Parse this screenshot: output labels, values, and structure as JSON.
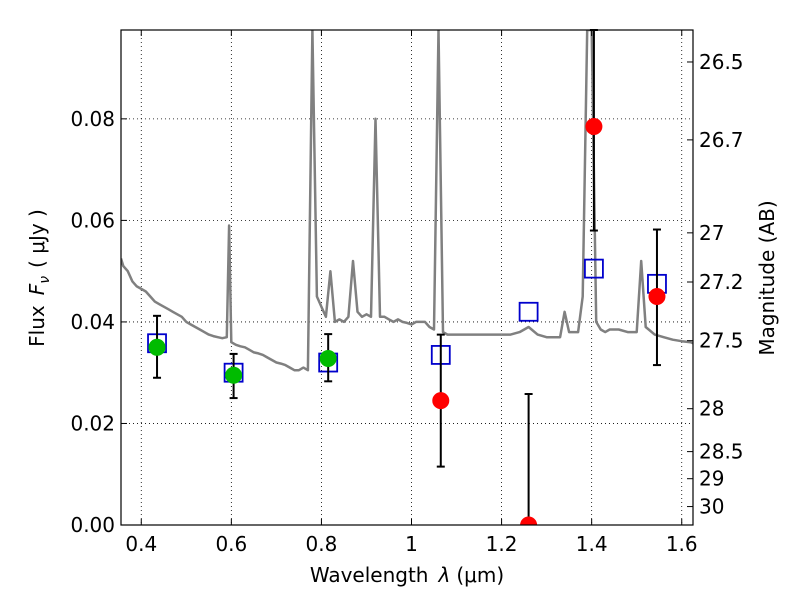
{
  "chart_data": {
    "type": "scatter",
    "xlabel_prefix": "Wavelength",
    "xlabel_symbol": "λ",
    "xlabel_unit": "(μm)",
    "ylabel_prefix": "Flux",
    "ylabel_symbol": "F",
    "ylabel_sub": "ν",
    "ylabel_unit": "( μJy )",
    "y2label": "Magnitude (AB)",
    "xlim": [
      0.355,
      1.625
    ],
    "ylim": [
      0.0,
      0.0975
    ],
    "grid": true,
    "x_ticks": [
      "0.4",
      "0.6",
      "0.8",
      "1",
      "1.2",
      "1.4",
      "1.6"
    ],
    "x_tick_values": [
      0.4,
      0.6,
      0.8,
      1.0,
      1.2,
      1.4,
      1.6
    ],
    "y_ticks": [
      "0.00",
      "0.02",
      "0.04",
      "0.06",
      "0.08"
    ],
    "y_tick_values": [
      0.0,
      0.02,
      0.04,
      0.06,
      0.08
    ],
    "y2_ticks": [
      "26.5",
      "26.7",
      "27",
      "27.2",
      "27.5",
      "28",
      "28.5",
      "29",
      "30"
    ],
    "y2_tick_values": [
      26.5,
      26.7,
      27.0,
      27.2,
      27.5,
      28.0,
      28.5,
      29.0,
      30.0
    ],
    "colors": {
      "spectrum": "#808080",
      "model_squares": "#0000cc",
      "green_points": "#00bb00",
      "red_points": "#ff0000",
      "errorbar": "#000000"
    },
    "series": [
      {
        "kind": "line",
        "x": [
          0.355,
          0.36,
          0.37,
          0.38,
          0.39,
          0.4,
          0.41,
          0.42,
          0.43,
          0.44,
          0.45,
          0.46,
          0.47,
          0.48,
          0.49,
          0.5,
          0.51,
          0.52,
          0.53,
          0.54,
          0.55,
          0.56,
          0.57,
          0.58,
          0.59,
          0.595,
          0.6,
          0.61,
          0.62,
          0.63,
          0.64,
          0.65,
          0.66,
          0.67,
          0.68,
          0.69,
          0.7,
          0.71,
          0.72,
          0.73,
          0.74,
          0.75,
          0.76,
          0.77,
          0.78,
          0.79,
          0.8,
          0.81,
          0.82,
          0.83,
          0.84,
          0.85,
          0.86,
          0.87,
          0.88,
          0.89,
          0.9,
          0.91,
          0.92,
          0.93,
          0.94,
          0.95,
          0.96,
          0.97,
          0.98,
          0.99,
          1.0,
          1.01,
          1.02,
          1.03,
          1.04,
          1.05,
          1.06,
          1.07,
          1.08,
          1.1,
          1.12,
          1.14,
          1.16,
          1.18,
          1.2,
          1.22,
          1.24,
          1.26,
          1.28,
          1.3,
          1.32,
          1.33,
          1.34,
          1.35,
          1.36,
          1.37,
          1.38,
          1.39,
          1.4,
          1.41,
          1.42,
          1.43,
          1.44,
          1.46,
          1.48,
          1.5,
          1.51,
          1.52,
          1.54,
          1.56,
          1.58,
          1.6,
          1.62,
          1.625
        ],
        "y": [
          0.0525,
          0.051,
          0.05,
          0.048,
          0.047,
          0.0465,
          0.046,
          0.045,
          0.044,
          0.0435,
          0.043,
          0.0425,
          0.042,
          0.0415,
          0.041,
          0.04,
          0.0395,
          0.039,
          0.0385,
          0.038,
          0.0375,
          0.0372,
          0.037,
          0.0368,
          0.037,
          0.059,
          0.036,
          0.0355,
          0.0352,
          0.035,
          0.0345,
          0.034,
          0.0338,
          0.0335,
          0.033,
          0.0325,
          0.032,
          0.0318,
          0.0315,
          0.031,
          0.0305,
          0.0305,
          0.031,
          0.0305,
          0.0975,
          0.045,
          0.043,
          0.041,
          0.05,
          0.04,
          0.0405,
          0.04,
          0.041,
          0.052,
          0.042,
          0.041,
          0.0415,
          0.041,
          0.08,
          0.041,
          0.041,
          0.0405,
          0.04,
          0.0405,
          0.04,
          0.0398,
          0.0395,
          0.04,
          0.04,
          0.04,
          0.039,
          0.0385,
          0.0975,
          0.038,
          0.0375,
          0.0375,
          0.0375,
          0.0375,
          0.0375,
          0.0375,
          0.0375,
          0.0375,
          0.038,
          0.039,
          0.0375,
          0.037,
          0.037,
          0.037,
          0.042,
          0.038,
          0.038,
          0.038,
          0.045,
          0.0975,
          0.0975,
          0.04,
          0.0385,
          0.038,
          0.0385,
          0.0385,
          0.038,
          0.038,
          0.052,
          0.039,
          0.0375,
          0.037,
          0.0365,
          0.0362,
          0.036,
          0.0358
        ]
      },
      {
        "kind": "square",
        "x": [
          0.435,
          0.605,
          0.815,
          1.065,
          1.26,
          1.405,
          1.545
        ],
        "y": [
          0.0358,
          0.03,
          0.032,
          0.0335,
          0.042,
          0.0505,
          0.0475
        ]
      },
      {
        "kind": "circle-green",
        "x": [
          0.435,
          0.605,
          0.815
        ],
        "y": [
          0.035,
          0.0295,
          0.0328
        ],
        "err_low": [
          0.006,
          0.0045,
          0.0045
        ],
        "err_high": [
          0.0062,
          0.0042,
          0.0048
        ]
      },
      {
        "kind": "circle-red",
        "x": [
          1.065,
          1.26,
          1.405,
          1.545
        ],
        "y": [
          0.0245,
          0.0,
          0.0785,
          0.045
        ],
        "err_low": [
          0.013,
          0.0,
          0.0205,
          0.0135
        ],
        "err_high": [
          0.013,
          0.0258,
          0.019,
          0.0132
        ]
      }
    ]
  }
}
